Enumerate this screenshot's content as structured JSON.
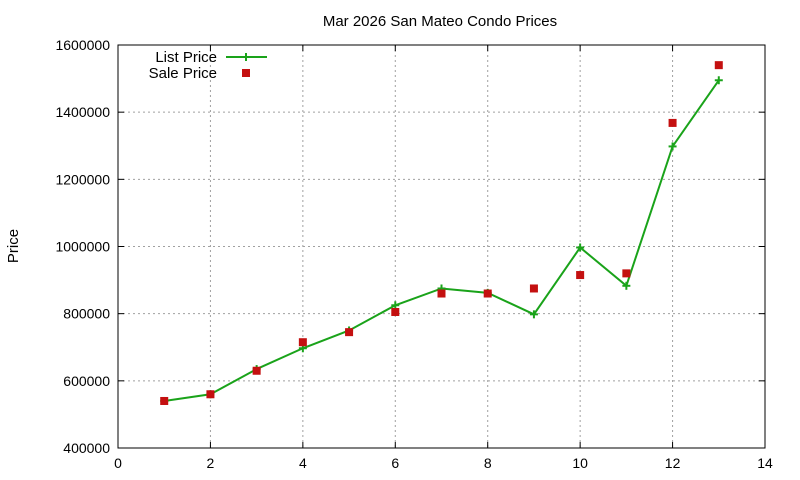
{
  "chart_data": {
    "type": "line",
    "title": "Mar 2026 San Mateo Condo Prices",
    "xlabel": "",
    "ylabel": "Price",
    "xlim": [
      0,
      14
    ],
    "ylim": [
      400000,
      1600000
    ],
    "xticks": [
      0,
      2,
      4,
      6,
      8,
      10,
      12,
      14
    ],
    "yticks": [
      400000,
      600000,
      800000,
      1000000,
      1200000,
      1400000,
      1600000
    ],
    "grid": true,
    "legend_position": "top-left",
    "series": [
      {
        "name": "List Price",
        "style": "line+cross",
        "color": "#1aa31a",
        "x": [
          1,
          2,
          3,
          4,
          5,
          6,
          7,
          8,
          9,
          10,
          11,
          12,
          13
        ],
        "values": [
          540000,
          560000,
          635000,
          697000,
          750000,
          825000,
          875000,
          862000,
          798000,
          997000,
          883000,
          1298000,
          1495000
        ]
      },
      {
        "name": "Sale Price",
        "style": "square-markers",
        "color": "#c41010",
        "x": [
          1,
          2,
          3,
          4,
          5,
          6,
          7,
          8,
          9,
          10,
          11,
          12,
          13
        ],
        "values": [
          540000,
          560000,
          630000,
          715000,
          745000,
          805000,
          860000,
          860000,
          875000,
          915000,
          920000,
          1368000,
          1540000
        ]
      }
    ]
  }
}
